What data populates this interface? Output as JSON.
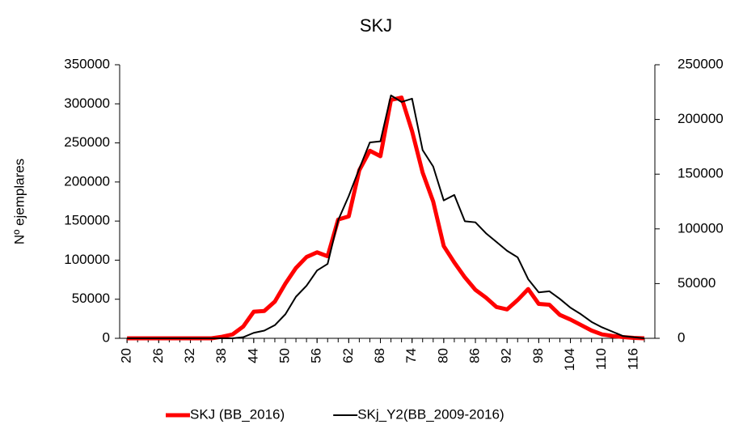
{
  "chart_data": {
    "type": "line",
    "title": "SKJ",
    "y_label": "Nº ejemplares",
    "x": [
      20,
      22,
      24,
      26,
      28,
      30,
      32,
      34,
      36,
      38,
      40,
      42,
      44,
      46,
      48,
      50,
      52,
      54,
      56,
      58,
      60,
      62,
      64,
      66,
      68,
      70,
      72,
      74,
      76,
      78,
      80,
      82,
      84,
      86,
      88,
      90,
      92,
      94,
      96,
      98,
      100,
      102,
      104,
      106,
      108,
      110,
      112,
      114,
      116,
      118
    ],
    "xlim": [
      18.6,
      120
    ],
    "xticks": [
      20,
      26,
      32,
      38,
      44,
      50,
      56,
      62,
      68,
      74,
      80,
      86,
      92,
      98,
      104,
      110,
      116
    ],
    "ylim": [
      0,
      350000
    ],
    "yticks": [
      0,
      50000,
      100000,
      150000,
      200000,
      250000,
      300000,
      350000
    ],
    "y2lim": [
      0,
      250000
    ],
    "y2ticks": [
      0,
      50000,
      100000,
      150000,
      200000,
      250000
    ],
    "legend": "bottom",
    "series": [
      {
        "name": "SKJ (BB_2016)",
        "color": "#ff0000",
        "width": 5,
        "axis": "y",
        "values": [
          0,
          0,
          0,
          0,
          0,
          0,
          0,
          0,
          0,
          2000,
          5000,
          15000,
          34000,
          35000,
          47000,
          70000,
          90000,
          104000,
          110000,
          105000,
          152000,
          156000,
          215000,
          240000,
          233000,
          305000,
          308000,
          265000,
          212000,
          175000,
          118000,
          97000,
          78000,
          62000,
          52000,
          40000,
          37000,
          49000,
          63000,
          44000,
          43000,
          30000,
          24000,
          17000,
          10000,
          5000,
          3000,
          1500,
          500,
          0
        ]
      },
      {
        "name": "SKj_Y2(BB_2009-2016)",
        "color": "#000000",
        "width": 2,
        "axis": "y2",
        "values": [
          0,
          0,
          0,
          0,
          0,
          0,
          0,
          0,
          0,
          0,
          0,
          1000,
          5000,
          7000,
          12000,
          22000,
          38000,
          48000,
          62000,
          68000,
          108000,
          130000,
          155000,
          179000,
          180000,
          222000,
          216000,
          219000,
          172000,
          157000,
          126000,
          131000,
          107000,
          106000,
          96000,
          88000,
          80000,
          74000,
          54000,
          42000,
          43000,
          36000,
          28000,
          22000,
          15000,
          10000,
          6000,
          2000,
          1000,
          0
        ]
      }
    ]
  }
}
